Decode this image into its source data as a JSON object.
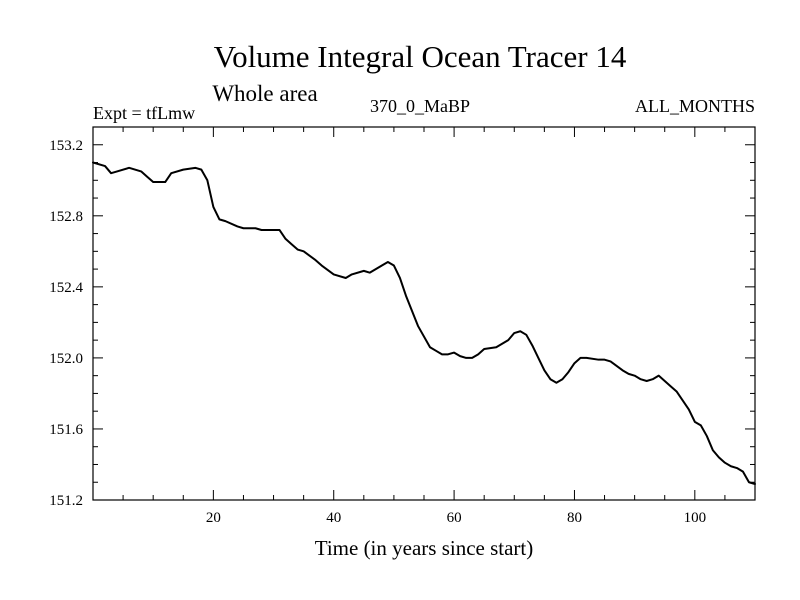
{
  "chart_data": {
    "type": "line",
    "title": "Volume Integral Ocean Tracer 14",
    "subtitle": "Whole area",
    "left_label": "Expt = tfLmw",
    "center_label": "370_0_MaBP",
    "right_label": "ALL_MONTHS",
    "xlabel": "Time (in years since start)",
    "ylabel": "",
    "xlim": [
      0,
      110
    ],
    "ylim": [
      151.2,
      153.3
    ],
    "x_ticks": [
      20,
      40,
      60,
      80,
      100
    ],
    "x_tick_labels": [
      "20",
      "40",
      "60",
      "80",
      "100"
    ],
    "y_ticks": [
      151.2,
      151.6,
      152.0,
      152.4,
      152.8,
      153.2
    ],
    "y_tick_labels": [
      "151.2",
      "151.6",
      "152.0",
      "152.4",
      "152.8",
      "153.2"
    ],
    "grid": false,
    "series": [
      {
        "name": "tracer14",
        "color": "#000000",
        "x": [
          0,
          2,
          3,
          4,
          6,
          8,
          9,
          10,
          12,
          13,
          15,
          17,
          18,
          19,
          20,
          21,
          22,
          24,
          25,
          27,
          28,
          30,
          31,
          32,
          33,
          34,
          35,
          37,
          38,
          40,
          42,
          43,
          45,
          46,
          48,
          49,
          50,
          51,
          52,
          54,
          56,
          57,
          58,
          59,
          60,
          61,
          62,
          63,
          64,
          65,
          67,
          69,
          70,
          71,
          72,
          73,
          74,
          75,
          76,
          77,
          78,
          79,
          80,
          81,
          82,
          84,
          85,
          86,
          88,
          89,
          90,
          91,
          92,
          93,
          94,
          95,
          96,
          97,
          98,
          99,
          100,
          101,
          102,
          103,
          104,
          105,
          106,
          107,
          108,
          109,
          110
        ],
        "y": [
          153.1,
          153.08,
          153.04,
          153.05,
          153.07,
          153.05,
          153.02,
          152.99,
          152.99,
          153.04,
          153.06,
          153.07,
          153.06,
          153.0,
          152.85,
          152.78,
          152.77,
          152.74,
          152.73,
          152.73,
          152.72,
          152.72,
          152.72,
          152.67,
          152.64,
          152.61,
          152.6,
          152.55,
          152.52,
          152.47,
          152.45,
          152.47,
          152.49,
          152.48,
          152.52,
          152.54,
          152.52,
          152.45,
          152.35,
          152.18,
          152.06,
          152.04,
          152.02,
          152.02,
          152.03,
          152.01,
          152.0,
          152.0,
          152.02,
          152.05,
          152.06,
          152.1,
          152.14,
          152.15,
          152.13,
          152.07,
          152.0,
          151.93,
          151.88,
          151.86,
          151.88,
          151.92,
          151.97,
          152.0,
          152.0,
          151.99,
          151.99,
          151.98,
          151.93,
          151.91,
          151.9,
          151.88,
          151.87,
          151.88,
          151.9,
          151.87,
          151.84,
          151.81,
          151.76,
          151.71,
          151.64,
          151.62,
          151.56,
          151.48,
          151.44,
          151.41,
          151.39,
          151.38,
          151.36,
          151.3,
          151.29
        ]
      }
    ]
  }
}
